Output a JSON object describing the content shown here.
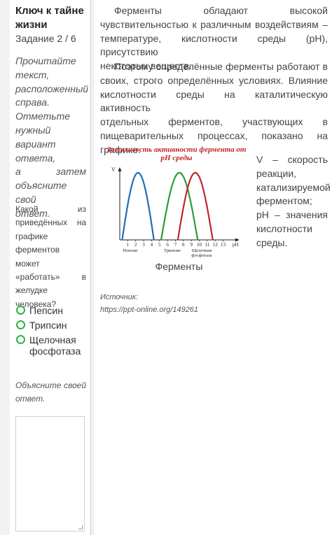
{
  "sidebar": {
    "title": "Ключ к тайне жизни",
    "task": "Задание 2 / 6",
    "instruction_lines": [
      "Прочитайте",
      "текст,",
      "расположенный",
      "справа.",
      "Отметьте",
      "нужный",
      "вариант ответа,",
      "а затем",
      "объясните свой",
      "ответ."
    ],
    "question_lines": [
      "Какой из",
      "приведённых на",
      "графике",
      "ферментов может",
      "«работать» в",
      "желудке",
      "человека?"
    ],
    "options": [
      "Пепсин",
      "Трипсин",
      "Щелочная фосфотаза"
    ],
    "explain_lines": [
      "Объясните своей",
      "ответ."
    ],
    "answer_placeholder": ""
  },
  "main": {
    "paragraph1_lines": [
      "Ферменты обладают высокой",
      "чувствительностью к различным воздействиям –",
      "температуре, кислотности среды (pH), присутствию",
      "некоторых веществ."
    ],
    "paragraph2_lines": [
      "Поэтому определённые ферменты работают в",
      "своих, строго определённых условиях. Влияние",
      "кислотности среды на каталитическую активность",
      "отдельных ферментов, участвующих в",
      "пищеварительных процессах, показано на графике."
    ],
    "legend_lines": [
      "V – скорость",
      "реакции,",
      "катализируемой",
      "ферментом;",
      "pH – значения",
      "кислотности",
      "среды."
    ],
    "chart_caption": "Ферменты",
    "source_label": "Источник:",
    "source_url": "https://ppt-online.org/149261"
  },
  "chart_data": {
    "type": "line",
    "title": "Зависимость активности фермента от pH среды",
    "xlabel": "pH",
    "ylabel": "V",
    "xlim": [
      0,
      14
    ],
    "x_ticks": [
      "1",
      "2",
      "3",
      "4",
      "5",
      "6",
      "7",
      "8",
      "9",
      "10",
      "11",
      "12",
      "13"
    ],
    "series": [
      {
        "name": "Пепсин",
        "color": "#1f6fb5",
        "peak_ph": 2,
        "range": [
          0.3,
          4.3
        ]
      },
      {
        "name": "Трипсин",
        "color": "#2e9b3a",
        "peak_ph": 7.5,
        "range": [
          5.2,
          9.8
        ]
      },
      {
        "name": "Щелочная фосфотаза",
        "color": "#c0272d",
        "peak_ph": 9.5,
        "range": [
          7.3,
          11.7
        ]
      }
    ],
    "series_labels": [
      "Пепсин",
      "Трипсин",
      "Щелочная",
      "фосфотаза"
    ],
    "title_color": "#c0272d"
  }
}
